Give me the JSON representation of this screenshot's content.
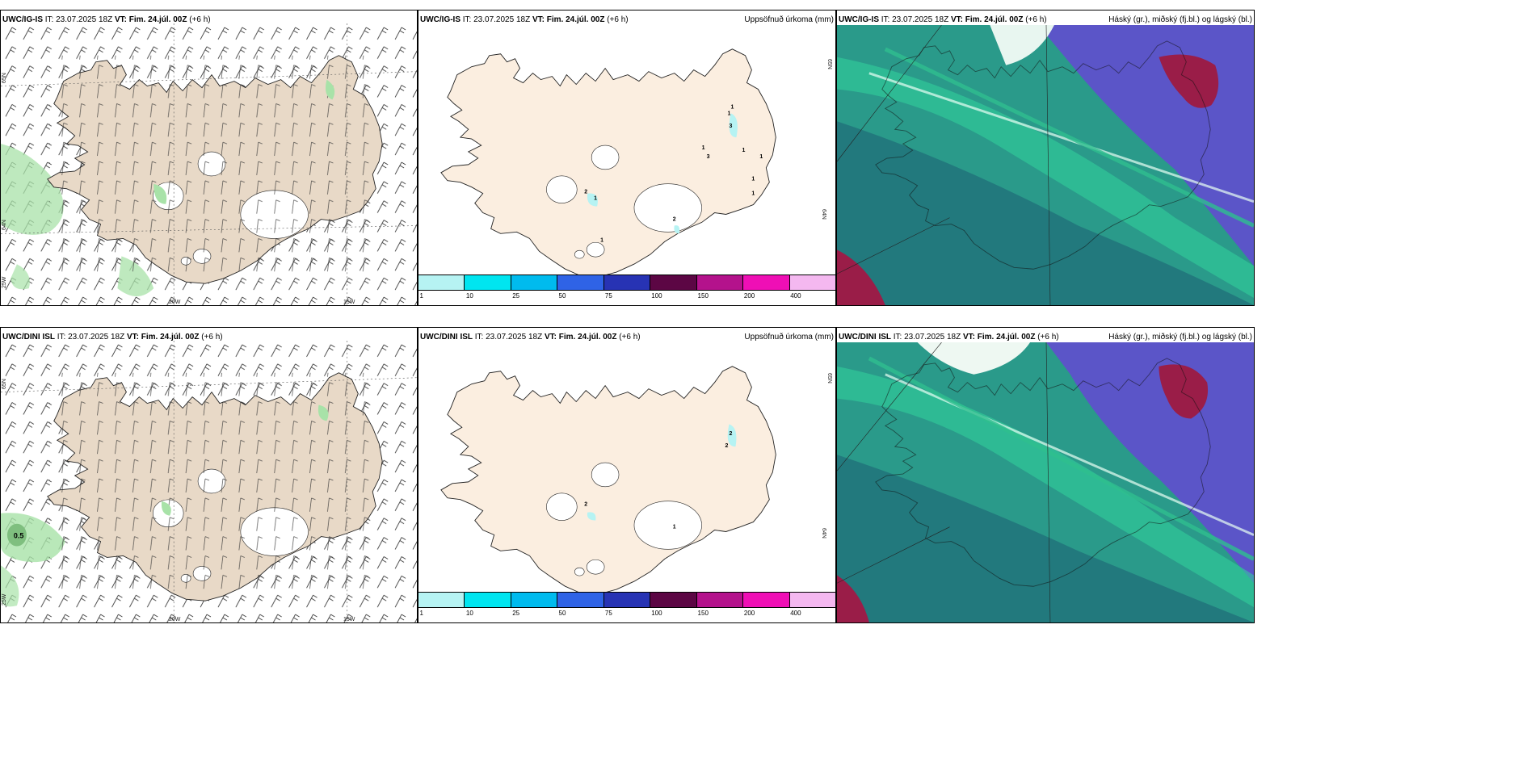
{
  "colors": {
    "land_tan": "#e8d9c7",
    "land_beige": "#fbeee0",
    "precip_green": "#a8e2a8",
    "cloud_high_green": "#2fbf8f",
    "cloud_mid_teal": "#1f6b78",
    "cloud_low_blue": "#5b55c8",
    "cloud_red": "#9a1d48"
  },
  "colorbar": {
    "labels": [
      "1",
      "10",
      "25",
      "50",
      "75",
      "100",
      "150",
      "200",
      "400"
    ],
    "colors": [
      "#b6f3f3",
      "#00e5f0",
      "#00bbee",
      "#2f63e6",
      "#2733b4",
      "#5c0644",
      "#b4128c",
      "#ef0fb5",
      "#f4b8f0"
    ]
  },
  "rows": [
    {
      "model": "UWC/IG-IS",
      "panels": [
        {
          "kind": "wind",
          "header_left": {
            "model": "UWC/IG-IS",
            "it": " IT: 23.07.2025 18Z ",
            "vt_label": "VT: Fim. 24.júl. 00Z",
            "lead": " (+6 h)"
          },
          "header_right": "",
          "grid_labels": [
            "65N",
            "64N",
            "25W",
            "20W",
            "15W"
          ],
          "map_values": []
        },
        {
          "kind": "precip",
          "header_left": {
            "model": "UWC/IG-IS",
            "it": " IT: 23.07.2025 18Z ",
            "vt_label": "VT: Fim. 24.júl. 00Z",
            "lead": " (+6 h)"
          },
          "header_right": "Uppsöfnuð úrkoma (mm)",
          "grid_labels": [
            "65N",
            "64N"
          ],
          "map_values": [
            "1",
            "1",
            "3",
            "1",
            "3",
            "1",
            "1",
            "1",
            "1",
            "2",
            "1",
            "2",
            "1"
          ]
        },
        {
          "kind": "cloud",
          "header_left": {
            "model": "UWC/IG-IS",
            "it": " IT: 23.07.2025 18Z ",
            "vt_label": "VT: Fim. 24.júl. 00Z",
            "lead": " (+6 h)"
          },
          "header_right": "Háský (gr.), miðský (fj.bl.) og lágský (bl.)",
          "grid_labels": [],
          "map_values": []
        }
      ]
    },
    {
      "model": "UWC/DINI ISL",
      "panels": [
        {
          "kind": "wind",
          "header_left": {
            "model": "UWC/DINI ISL",
            "it": " IT: 23.07.2025 18Z ",
            "vt_label": "VT: Fim. 24.júl. 00Z",
            "lead": " (+6 h)"
          },
          "header_right": "",
          "grid_labels": [
            "65N",
            "25W",
            "20W",
            "15W"
          ],
          "map_values": [
            "0.5"
          ]
        },
        {
          "kind": "precip",
          "header_left": {
            "model": "UWC/DINI ISL",
            "it": " IT: 23.07.2025 18Z ",
            "vt_label": "VT: Fim. 24.júl. 00Z",
            "lead": " (+6 h)"
          },
          "header_right": "Uppsöfnuð úrkoma (mm)",
          "grid_labels": [
            "65N",
            "64N"
          ],
          "map_values": [
            "2",
            "2",
            "2",
            "1"
          ]
        },
        {
          "kind": "cloud",
          "header_left": {
            "model": "UWC/DINI ISL",
            "it": " IT: 23.07.2025 18Z ",
            "vt_label": "VT: Fim. 24.júl. 00Z",
            "lead": " (+6 h)"
          },
          "header_right": "Háský (gr.), miðský (fj.bl.) og lágský (bl.)",
          "grid_labels": [],
          "map_values": []
        }
      ]
    }
  ]
}
